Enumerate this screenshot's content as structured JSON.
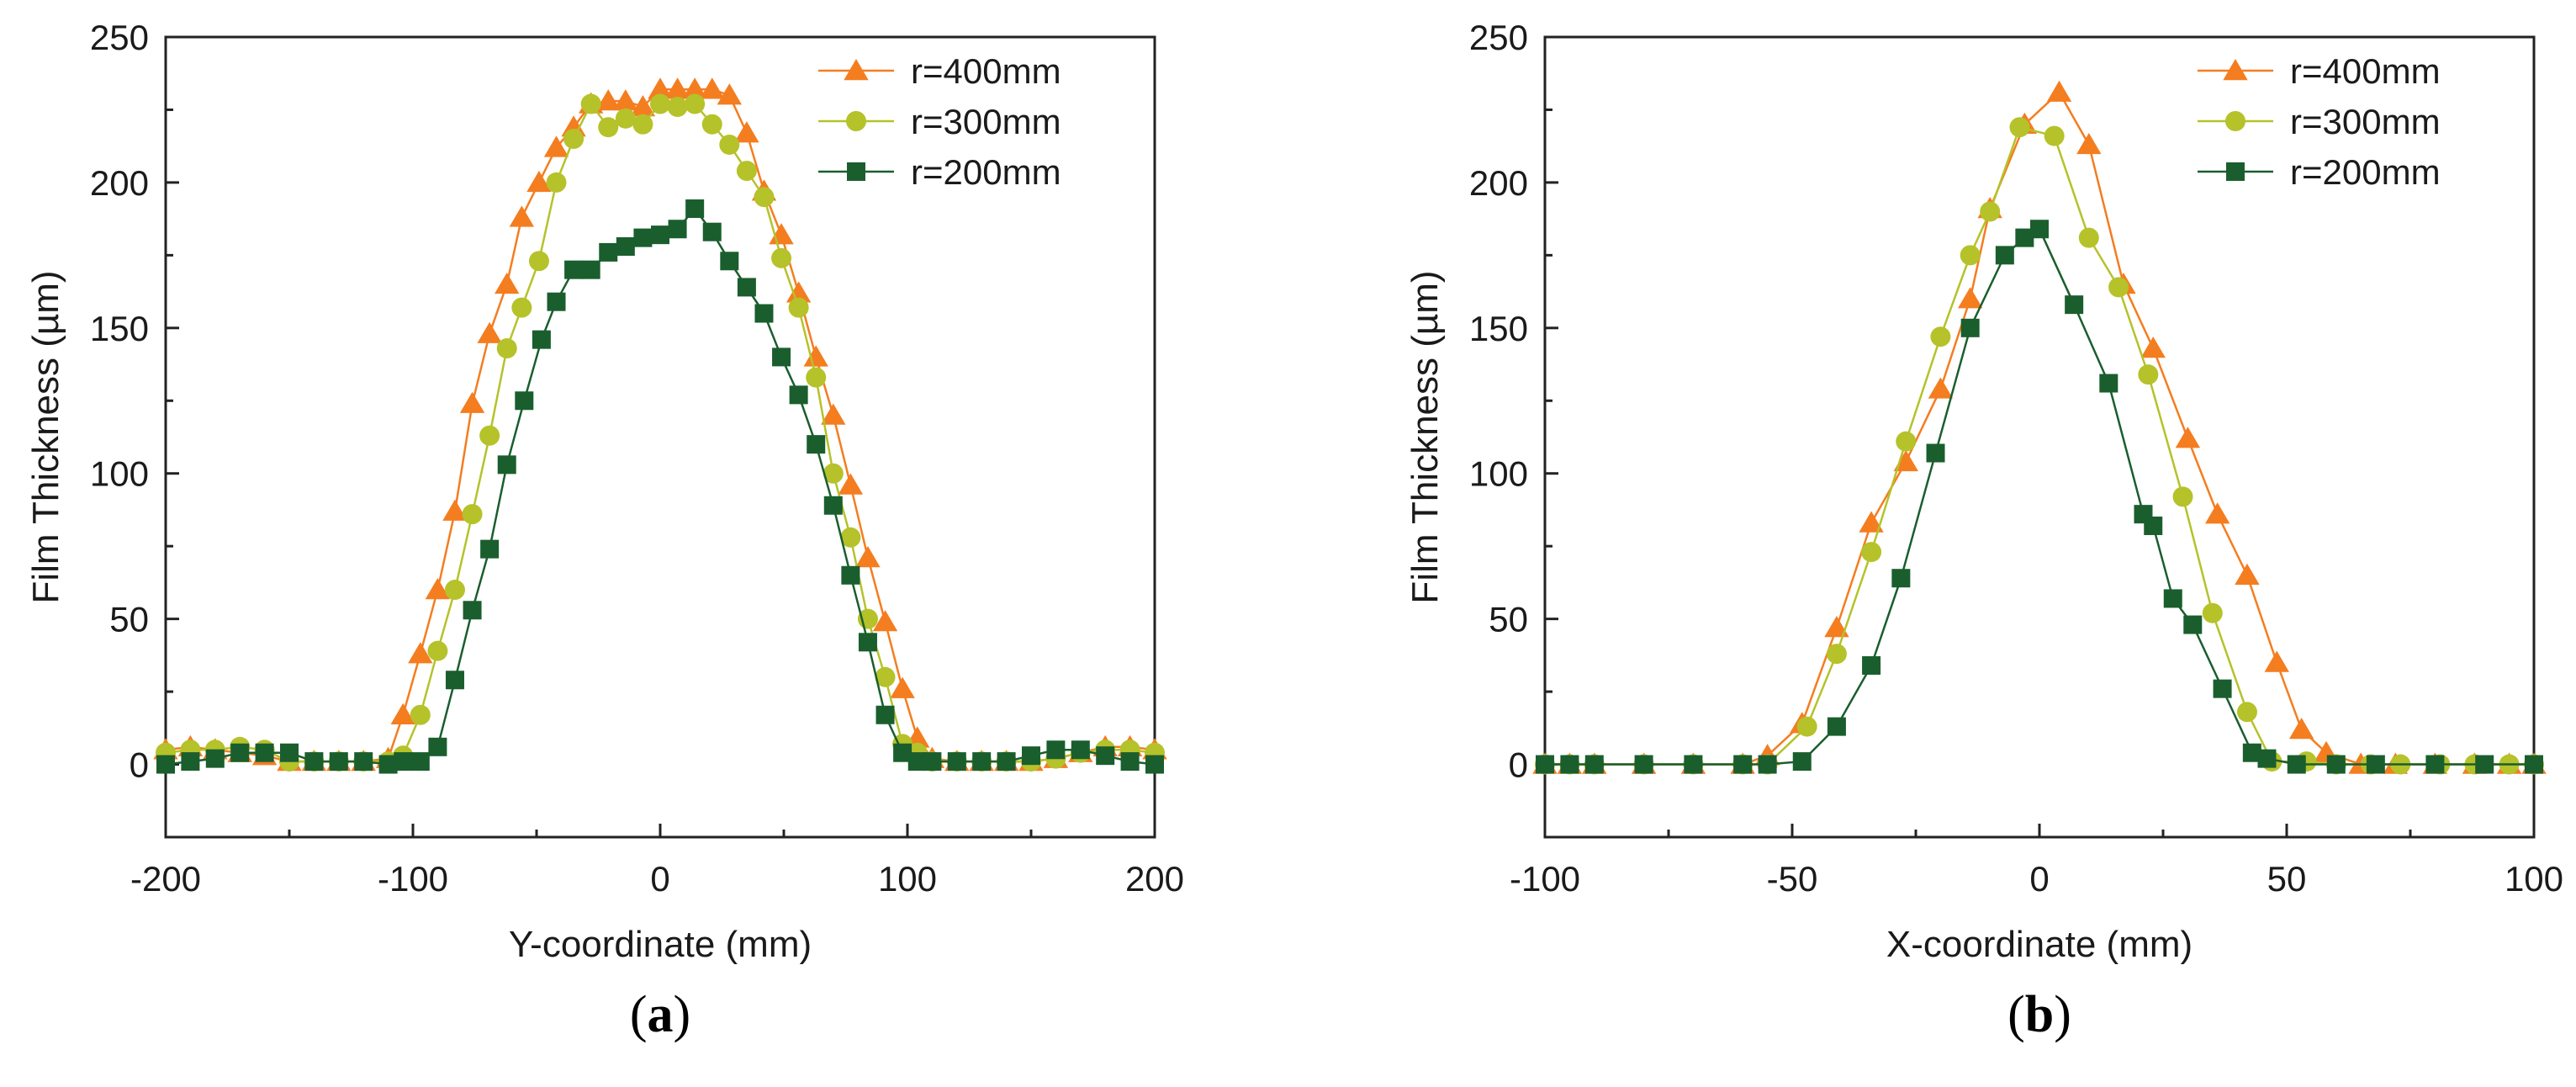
{
  "chart_data": [
    {
      "type": "line",
      "caption": "(a)",
      "caption_letter": "a",
      "title": "",
      "xlabel": "Y-coordinate (mm)",
      "ylabel": "Film Thickness (µm)",
      "xlim": [
        -200,
        200
      ],
      "ylim": [
        -25,
        250
      ],
      "xticks": [
        -200,
        -100,
        0,
        100,
        200
      ],
      "yticks": [
        0,
        50,
        100,
        150,
        200,
        250
      ],
      "grid": false,
      "legend_position": "top-right",
      "series": [
        {
          "name": "r=400mm",
          "color": "#f47d20",
          "marker": "triangle",
          "x": [
            -200,
            -190,
            -180,
            -170,
            -160,
            -150,
            -140,
            -130,
            -120,
            -110,
            -104,
            -97,
            -90,
            -83,
            -76,
            -69,
            -62,
            -56,
            -49,
            -42,
            -35,
            -28,
            -21,
            -14,
            -7,
            0,
            7,
            14,
            21,
            28,
            35,
            42,
            49,
            56,
            63,
            70,
            77,
            84,
            91,
            98,
            104,
            110,
            120,
            130,
            140,
            150,
            160,
            170,
            180,
            190,
            200
          ],
          "y": [
            5,
            6,
            5,
            4,
            3,
            1,
            1,
            1,
            1,
            2,
            17,
            38,
            60,
            87,
            124,
            148,
            165,
            188,
            200,
            212,
            219,
            227,
            228,
            228,
            226,
            232,
            232,
            232,
            232,
            230,
            217,
            197,
            182,
            162,
            140,
            120,
            96,
            71,
            49,
            26,
            9,
            2,
            1,
            1,
            1,
            1,
            2,
            4,
            6,
            6,
            5
          ]
        },
        {
          "name": "r=300mm",
          "color": "#b5c22a",
          "marker": "circle",
          "x": [
            -200,
            -190,
            -180,
            -170,
            -160,
            -150,
            -140,
            -130,
            -120,
            -110,
            -104,
            -97,
            -90,
            -83,
            -76,
            -69,
            -62,
            -56,
            -49,
            -42,
            -35,
            -28,
            -21,
            -14,
            -7,
            0,
            7,
            14,
            21,
            28,
            35,
            42,
            49,
            56,
            63,
            70,
            77,
            84,
            91,
            98,
            104,
            110,
            120,
            130,
            140,
            150,
            160,
            170,
            180,
            190,
            200
          ],
          "y": [
            4,
            5,
            5,
            6,
            5,
            1,
            1,
            1,
            1,
            1,
            3,
            17,
            39,
            60,
            86,
            113,
            143,
            157,
            173,
            200,
            215,
            227,
            219,
            222,
            220,
            227,
            226,
            227,
            220,
            213,
            204,
            195,
            174,
            157,
            133,
            100,
            78,
            50,
            30,
            7,
            4,
            1,
            1,
            1,
            1,
            1,
            2,
            4,
            5,
            5,
            4
          ]
        },
        {
          "name": "r=200mm",
          "color": "#1a5e2e",
          "marker": "square",
          "x": [
            -200,
            -190,
            -180,
            -170,
            -160,
            -150,
            -140,
            -130,
            -120,
            -110,
            -104,
            -97,
            -90,
            -83,
            -76,
            -69,
            -62,
            -55,
            -48,
            -42,
            -35,
            -28,
            -21,
            -14,
            -7,
            0,
            7,
            14,
            21,
            28,
            35,
            42,
            49,
            56,
            63,
            70,
            77,
            84,
            91,
            98,
            104,
            110,
            120,
            130,
            140,
            150,
            160,
            170,
            180,
            190,
            200
          ],
          "y": [
            0,
            1,
            2,
            4,
            4,
            4,
            1,
            1,
            1,
            0,
            1,
            1,
            6,
            29,
            53,
            74,
            103,
            125,
            146,
            159,
            170,
            170,
            176,
            178,
            181,
            182,
            184,
            191,
            183,
            173,
            164,
            155,
            140,
            127,
            110,
            89,
            65,
            42,
            17,
            4,
            1,
            1,
            1,
            1,
            1,
            3,
            5,
            5,
            3,
            1,
            0
          ]
        }
      ],
      "legend_entries": [
        "r=400mm",
        "r=300mm",
        "r=200mm"
      ]
    },
    {
      "type": "line",
      "caption": "(b)",
      "caption_letter": "b",
      "title": "",
      "xlabel": "X-coordinate (mm)",
      "ylabel": "Film Thickness (µm)",
      "xlim": [
        -100,
        100
      ],
      "ylim": [
        -25,
        250
      ],
      "xticks": [
        -100,
        -50,
        0,
        50,
        100
      ],
      "yticks": [
        0,
        50,
        100,
        150,
        200,
        250
      ],
      "grid": false,
      "legend_position": "top-right",
      "series": [
        {
          "name": "r=400mm",
          "color": "#f47d20",
          "marker": "triangle",
          "x": [
            -100,
            -95,
            -90,
            -80,
            -70,
            -60,
            -55,
            -48,
            -41,
            -34,
            -27,
            -20,
            -14,
            -10,
            -3,
            4,
            10,
            17,
            23,
            30,
            36,
            42,
            48,
            53,
            58,
            65,
            72,
            80,
            88,
            95,
            100
          ],
          "y": [
            0,
            0,
            0,
            0,
            0,
            0,
            3,
            14,
            47,
            83,
            104,
            129,
            160,
            191,
            220,
            231,
            213,
            165,
            143,
            112,
            86,
            65,
            35,
            12,
            4,
            0,
            0,
            0,
            0,
            0,
            0
          ]
        },
        {
          "name": "r=300mm",
          "color": "#b5c22a",
          "marker": "circle",
          "x": [
            -100,
            -95,
            -90,
            -80,
            -70,
            -60,
            -55,
            -47,
            -41,
            -34,
            -27,
            -20,
            -14,
            -10,
            -4,
            3,
            10,
            16,
            22,
            29,
            35,
            42,
            47,
            54,
            60,
            67,
            73,
            81,
            88,
            95,
            100
          ],
          "y": [
            0,
            0,
            0,
            0,
            0,
            0,
            0,
            13,
            38,
            73,
            111,
            147,
            175,
            190,
            219,
            216,
            181,
            164,
            134,
            92,
            52,
            18,
            1,
            1,
            0,
            0,
            0,
            0,
            0,
            0,
            0
          ]
        },
        {
          "name": "r=200mm",
          "color": "#1a5e2e",
          "marker": "square",
          "x": [
            -100,
            -95,
            -90,
            -80,
            -70,
            -60,
            -55,
            -48,
            -41,
            -34,
            -28,
            -21,
            -14,
            -7,
            -3,
            0,
            7,
            14,
            21,
            23,
            27,
            31,
            37,
            43,
            46,
            52,
            60,
            68,
            80,
            90,
            100
          ],
          "y": [
            0,
            0,
            0,
            0,
            0,
            0,
            0,
            1,
            13,
            34,
            64,
            107,
            150,
            175,
            181,
            184,
            158,
            131,
            86,
            82,
            57,
            48,
            26,
            4,
            2,
            0,
            0,
            0,
            0,
            0,
            0
          ]
        }
      ],
      "legend_entries": [
        "r=400mm",
        "r=300mm",
        "r=200mm"
      ]
    }
  ]
}
